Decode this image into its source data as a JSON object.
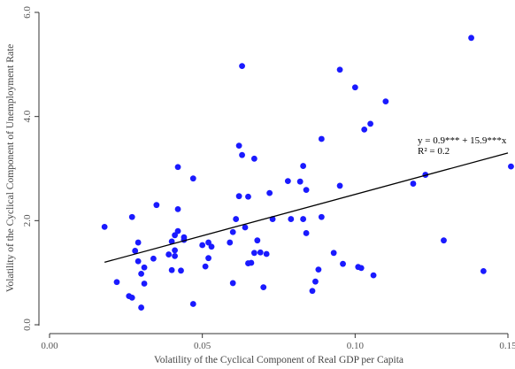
{
  "chart_data": {
    "type": "scatter",
    "xlabel": "Volatility of the Cyclical Component of Real GDP per Capita",
    "ylabel": "Volatility of the Cyclical Component of Unemployment Rate",
    "xlim": [
      0.0,
      0.15
    ],
    "ylim": [
      0.0,
      6.0
    ],
    "x_ticks": [
      0.0,
      0.05,
      0.1,
      0.15
    ],
    "x_tick_labels": [
      "0.00",
      "0.05",
      "0.10",
      "0.15"
    ],
    "y_ticks": [
      0.0,
      2.0,
      4.0,
      6.0
    ],
    "y_tick_labels": [
      "0.0",
      "2.0",
      "4.0",
      "6.0"
    ],
    "grid": false,
    "marker_color": "#1a1aff",
    "line_color": "#000000",
    "fit_line": {
      "x": [
        0.018,
        0.15
      ],
      "y": [
        1.2,
        3.3
      ]
    },
    "annotations": [
      "y = 0.9*** + 15.9***x",
      "R² = 0.2"
    ],
    "points": [
      [
        0.018,
        1.88
      ],
      [
        0.022,
        0.82
      ],
      [
        0.026,
        0.55
      ],
      [
        0.027,
        0.52
      ],
      [
        0.027,
        2.07
      ],
      [
        0.028,
        1.42
      ],
      [
        0.029,
        1.22
      ],
      [
        0.029,
        1.58
      ],
      [
        0.03,
        0.33
      ],
      [
        0.03,
        0.98
      ],
      [
        0.031,
        1.1
      ],
      [
        0.031,
        0.79
      ],
      [
        0.034,
        1.27
      ],
      [
        0.035,
        2.3
      ],
      [
        0.039,
        1.35
      ],
      [
        0.04,
        1.6
      ],
      [
        0.04,
        1.05
      ],
      [
        0.041,
        1.72
      ],
      [
        0.041,
        1.43
      ],
      [
        0.041,
        1.32
      ],
      [
        0.042,
        1.8
      ],
      [
        0.042,
        2.22
      ],
      [
        0.042,
        3.03
      ],
      [
        0.043,
        1.04
      ],
      [
        0.044,
        1.63
      ],
      [
        0.044,
        1.68
      ],
      [
        0.047,
        0.4
      ],
      [
        0.047,
        2.81
      ],
      [
        0.05,
        1.53
      ],
      [
        0.051,
        1.12
      ],
      [
        0.052,
        1.58
      ],
      [
        0.052,
        1.28
      ],
      [
        0.053,
        1.5
      ],
      [
        0.059,
        1.58
      ],
      [
        0.06,
        1.78
      ],
      [
        0.06,
        0.8
      ],
      [
        0.061,
        2.03
      ],
      [
        0.062,
        2.47
      ],
      [
        0.062,
        3.44
      ],
      [
        0.063,
        4.97
      ],
      [
        0.063,
        3.26
      ],
      [
        0.064,
        1.87
      ],
      [
        0.065,
        2.46
      ],
      [
        0.065,
        1.18
      ],
      [
        0.066,
        1.19
      ],
      [
        0.067,
        1.38
      ],
      [
        0.067,
        3.19
      ],
      [
        0.068,
        1.62
      ],
      [
        0.069,
        1.39
      ],
      [
        0.07,
        0.72
      ],
      [
        0.071,
        1.36
      ],
      [
        0.072,
        2.53
      ],
      [
        0.073,
        2.03
      ],
      [
        0.078,
        2.76
      ],
      [
        0.079,
        2.03
      ],
      [
        0.082,
        2.75
      ],
      [
        0.083,
        3.05
      ],
      [
        0.083,
        2.03
      ],
      [
        0.084,
        2.59
      ],
      [
        0.084,
        1.76
      ],
      [
        0.086,
        0.65
      ],
      [
        0.087,
        0.83
      ],
      [
        0.088,
        1.06
      ],
      [
        0.089,
        2.07
      ],
      [
        0.089,
        3.57
      ],
      [
        0.093,
        1.38
      ],
      [
        0.095,
        2.67
      ],
      [
        0.095,
        4.9
      ],
      [
        0.096,
        1.17
      ],
      [
        0.1,
        4.56
      ],
      [
        0.101,
        1.11
      ],
      [
        0.102,
        1.09
      ],
      [
        0.103,
        3.75
      ],
      [
        0.105,
        3.86
      ],
      [
        0.106,
        0.95
      ],
      [
        0.11,
        4.29
      ],
      [
        0.119,
        2.71
      ],
      [
        0.123,
        2.88
      ],
      [
        0.129,
        1.62
      ],
      [
        0.138,
        5.51
      ],
      [
        0.142,
        1.03
      ],
      [
        0.151,
        3.04
      ]
    ]
  }
}
